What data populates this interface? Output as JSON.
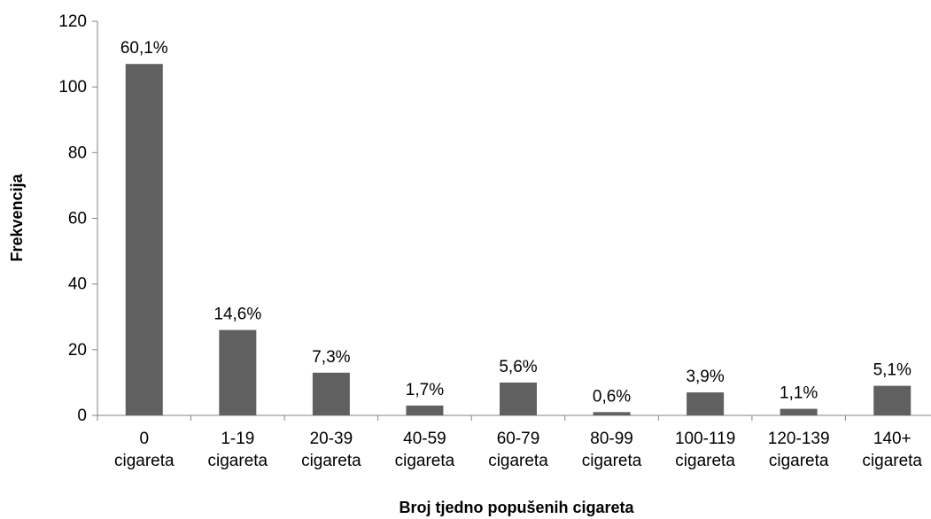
{
  "chart_data": {
    "type": "bar",
    "title": "",
    "xlabel": "Broj tjedno popušenih cigareta",
    "ylabel": "Frekvencija",
    "ylim": [
      0,
      120
    ],
    "yticks": [
      0,
      20,
      40,
      60,
      80,
      100,
      120
    ],
    "grid": false,
    "legend": "none",
    "bar_color": "#606060",
    "categories": [
      [
        "0",
        "cigareta"
      ],
      [
        "1-19",
        "cigareta"
      ],
      [
        "20-39",
        "cigareta"
      ],
      [
        "40-59",
        "cigareta"
      ],
      [
        "60-79",
        "cigareta"
      ],
      [
        "80-99",
        "cigareta"
      ],
      [
        "100-119",
        "cigareta"
      ],
      [
        "120-139",
        "cigareta"
      ],
      [
        "140+",
        "cigareta"
      ]
    ],
    "values": [
      107,
      26,
      13,
      3,
      10,
      1,
      7,
      2,
      9
    ],
    "data_labels": [
      "60,1%",
      "14,6%",
      "7,3%",
      "1,7%",
      "5,6%",
      "0,6%",
      "3,9%",
      "1,1%",
      "5,1%"
    ]
  }
}
